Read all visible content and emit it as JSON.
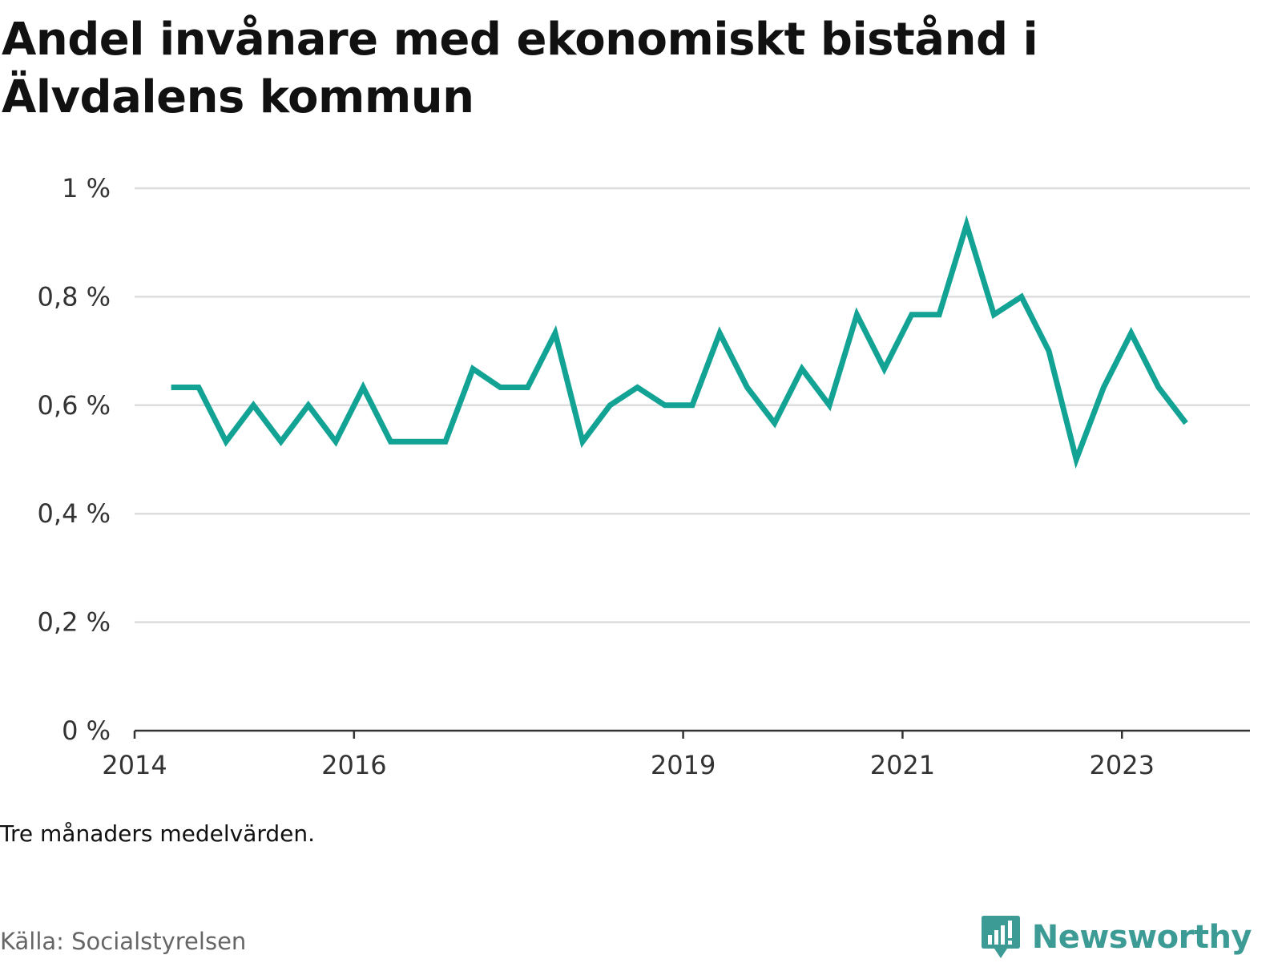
{
  "title": "Andel invånare med ekonomiskt bistånd i Älvdalens kommun",
  "note": "Tre månaders medelvärden.",
  "source": "Källa: Socialstyrelsen",
  "brand": {
    "name": "Newsworthy",
    "icon": "newsworthy-logo-icon",
    "color": "#3d9b95"
  },
  "colors": {
    "line": "#13a395",
    "grid": "#dddddd",
    "axis": "#333333"
  },
  "chart_data": {
    "type": "line",
    "title": "Andel invånare med ekonomiskt bistånd i Älvdalens kommun",
    "xlabel": "",
    "ylabel": "",
    "x_ticks": [
      "2014",
      "2016",
      "2019",
      "2021",
      "2023"
    ],
    "y_ticks": [
      {
        "value": 0,
        "label": "0 %"
      },
      {
        "value": 0.2,
        "label": "0,2 %"
      },
      {
        "value": 0.4,
        "label": "0,4 %"
      },
      {
        "value": 0.6,
        "label": "0,6 %"
      },
      {
        "value": 0.8,
        "label": "0,8 %"
      },
      {
        "value": 1.0,
        "label": "1 %"
      }
    ],
    "ylim": [
      0,
      1.0
    ],
    "xlim": [
      "2014-01",
      "2024-03"
    ],
    "grid": true,
    "series": [
      {
        "x": [
          "2014-05",
          "2014-08",
          "2014-11",
          "2015-02",
          "2015-05",
          "2015-08",
          "2015-11",
          "2016-02",
          "2016-05",
          "2016-08",
          "2016-11",
          "2017-02",
          "2017-05",
          "2017-08",
          "2017-11",
          "2018-02",
          "2018-05",
          "2018-08",
          "2018-11",
          "2019-02",
          "2019-05",
          "2019-08",
          "2019-11",
          "2020-02",
          "2020-05",
          "2020-08",
          "2020-11",
          "2021-02",
          "2021-05",
          "2021-08",
          "2021-11",
          "2022-02",
          "2022-05",
          "2022-08",
          "2022-11",
          "2023-02",
          "2023-05",
          "2023-08"
        ],
        "values": [
          0.633,
          0.633,
          0.533,
          0.6,
          0.533,
          0.6,
          0.533,
          0.633,
          0.533,
          0.533,
          0.533,
          0.667,
          0.633,
          0.633,
          0.733,
          0.533,
          0.6,
          0.633,
          0.6,
          0.6,
          0.733,
          0.633,
          0.567,
          0.667,
          0.6,
          0.767,
          0.667,
          0.767,
          0.767,
          0.933,
          0.767,
          0.8,
          0.7,
          0.5,
          0.633,
          0.733,
          0.633,
          0.567
        ]
      }
    ]
  }
}
